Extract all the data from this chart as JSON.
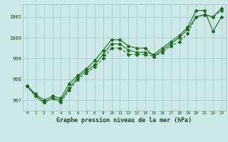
{
  "title": "Graphe pression niveau de la mer (hPa)",
  "bg_color": "#cce8e8",
  "grid_color": "#aacccc",
  "line_color": "#1a6e1a",
  "xlim": [
    -0.5,
    23.5
  ],
  "ylim": [
    996.5,
    1001.6
  ],
  "yticks": [
    997,
    998,
    999,
    1000,
    1001
  ],
  "xticks": [
    0,
    1,
    2,
    3,
    4,
    5,
    6,
    7,
    8,
    9,
    10,
    11,
    12,
    13,
    14,
    15,
    16,
    17,
    18,
    19,
    20,
    21,
    22,
    23
  ],
  "series1": [
    997.7,
    997.2,
    996.9,
    997.1,
    996.9,
    997.5,
    998.0,
    998.3,
    998.6,
    999.0,
    999.5,
    999.5,
    999.2,
    999.2,
    999.2,
    999.1,
    999.3,
    999.6,
    999.8,
    1000.2,
    1001.0,
    1001.1,
    1001.0,
    1001.3
  ],
  "series2": [
    997.7,
    997.2,
    996.9,
    997.1,
    997.0,
    997.6,
    998.1,
    998.4,
    998.7,
    999.2,
    999.7,
    999.7,
    999.4,
    999.3,
    999.3,
    999.2,
    999.5,
    999.8,
    1000.1,
    1000.5,
    1001.3,
    1001.3,
    1000.3,
    1001.0
  ],
  "series3": [
    997.7,
    997.3,
    997.0,
    997.2,
    997.1,
    997.8,
    998.2,
    998.5,
    998.9,
    999.4,
    999.9,
    999.9,
    999.6,
    999.5,
    999.5,
    999.1,
    999.4,
    999.7,
    1000.0,
    1000.4,
    1001.0,
    1001.1,
    1001.0,
    1001.4
  ],
  "ylabel_fontsize": 5.0,
  "xlabel_fontsize": 4.2,
  "title_fontsize": 6.0
}
